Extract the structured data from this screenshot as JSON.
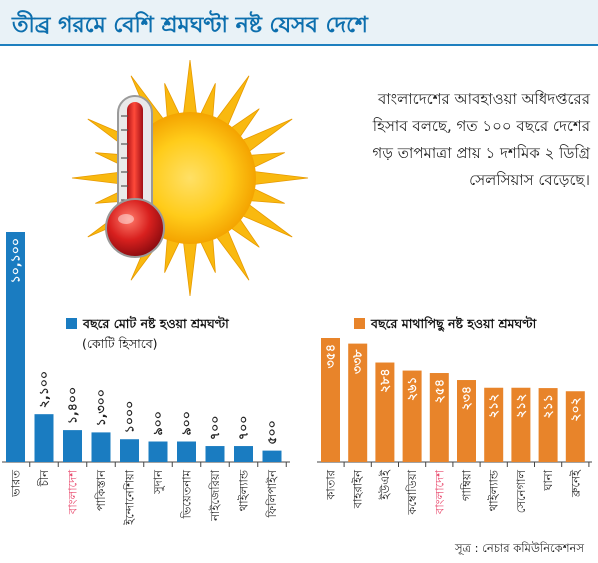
{
  "title": "তীব্র গরমে বেশি শ্রমঘণ্টা নষ্ট যেসব দেশে",
  "note": "বাংলাদেশের আবহাওয়া অধিদপ্তরের হিসাব বলছে, গত ১০০ বছরে দেশের গড় তাপমাত্রা প্রায় ১ দশমিক ২ ডিগ্রি সেলসিয়াস বেড়েছে।",
  "source": "সূত্র : নেচার কমিউনিকেশনস",
  "colors": {
    "title": "#0d6fae",
    "blue": "#1a7cc1",
    "orange": "#e8842a",
    "highlight": "#e8476b"
  },
  "chart_data": [
    {
      "type": "bar",
      "title": "বছরে মোট নষ্ট হওয়া শ্রমঘণ্টা",
      "subtitle": "(কোটি হিসাবে)",
      "categories": [
        "ভারত",
        "চীন",
        "বাংলাদেশ",
        "পাকিস্তান",
        "ইন্দোনেশিয়া",
        "সুদান",
        "ভিয়েতনাম",
        "নাইজেরিয়া",
        "থাইল্যান্ড",
        "ফিলিপাইন"
      ],
      "values": [
        10100,
        2100,
        1400,
        1300,
        1000,
        900,
        900,
        700,
        700,
        500
      ],
      "value_labels": [
        "১০,১০০",
        "২,১০০",
        "১,৪০০",
        "১,৩০০",
        "১০০০",
        "৯০০",
        "৯০০",
        "৭০০",
        "৭০০",
        "৫০০"
      ],
      "highlight": "বাংলাদেশ",
      "color": "#1a7cc1"
    },
    {
      "type": "bar",
      "title": "বছরে মাথাপিছু নষ্ট হওয়া শ্রমঘণ্টা",
      "categories": [
        "কাতার",
        "বাহরাইন",
        "ইউএই",
        "কম্বোডিয়া",
        "বাংলাদেশ",
        "গাম্বিয়া",
        "থাইল্যান্ড",
        "সেনেগাল",
        "ঘানা",
        "ব্রুনেই"
      ],
      "values": [
        354,
        338,
        284,
        261,
        254,
        234,
        212,
        212,
        211,
        202
      ],
      "value_labels": [
        "৩৫৪",
        "৩৩৮",
        "২৮৪",
        "২৬১",
        "২৫৪",
        "২৩৪",
        "২১২",
        "২১২",
        "২১১",
        "২০২"
      ],
      "highlight": "বাংলাদেশ",
      "color": "#e8842a"
    }
  ]
}
